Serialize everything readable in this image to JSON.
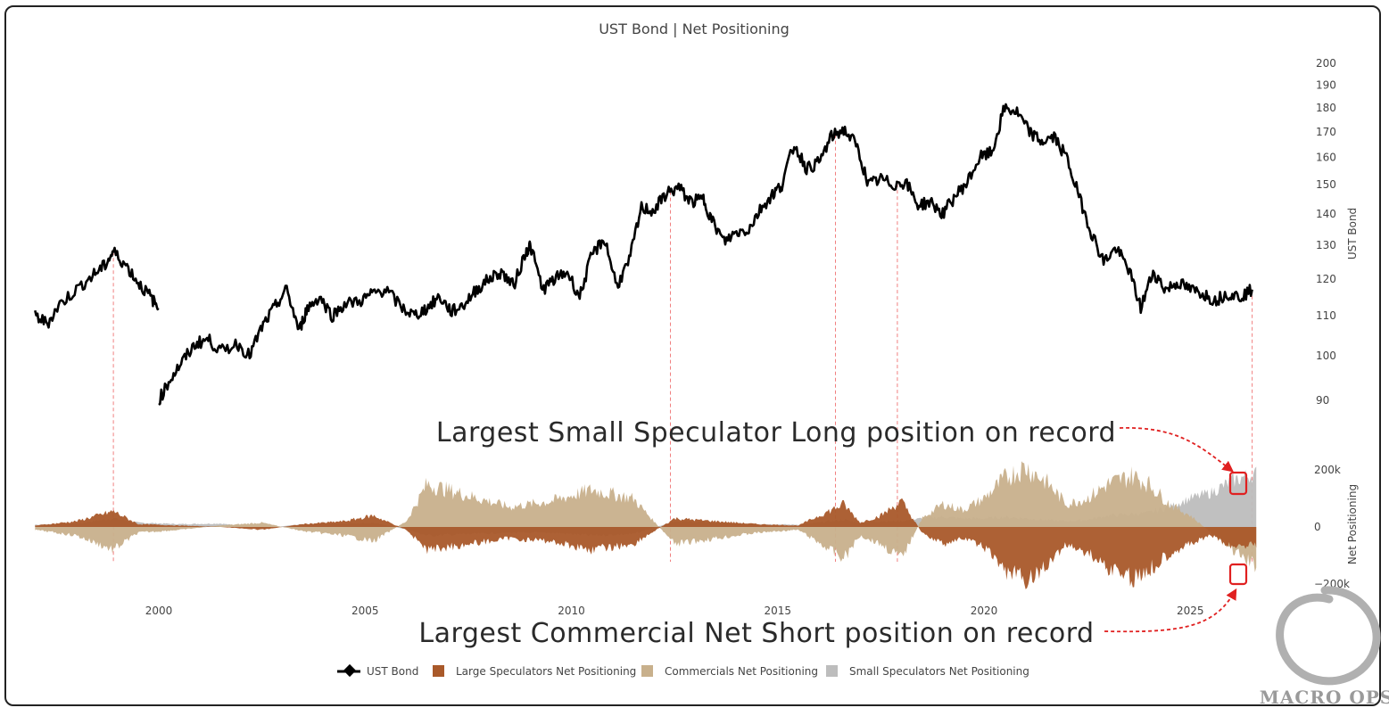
{
  "chart_data": {
    "type": "line",
    "title": "UST Bond | Net Positioning",
    "x_ticks": [
      "2000",
      "2005",
      "2010",
      "2015",
      "2020",
      "2025"
    ],
    "x_range": [
      1997.0,
      2026.6
    ],
    "upper_axis": {
      "label": "UST Bond",
      "scale": "log",
      "range": [
        85,
        200
      ],
      "ticks": [
        90,
        100,
        110,
        120,
        130,
        140,
        150,
        160,
        170,
        180,
        190,
        200
      ]
    },
    "lower_axis": {
      "label": "Net Positioning",
      "range": [
        -210000,
        230000
      ],
      "ticks": [
        200000,
        0,
        -200000
      ],
      "tick_labels": [
        "200k",
        "0",
        "−200k"
      ]
    },
    "series": [
      {
        "name": "UST Bond",
        "color": "#000000",
        "x": [
          1997.0,
          1997.3,
          1997.6,
          1998.0,
          1998.4,
          1998.7,
          1998.9,
          1999.2,
          1999.5,
          1999.8,
          1999.99,
          2000.0,
          2000.3,
          2000.6,
          2000.9,
          2001.2,
          2001.5,
          2001.9,
          2002.2,
          2002.5,
          2002.8,
          2003.1,
          2003.4,
          2003.6,
          2003.9,
          2004.2,
          2004.5,
          2004.9,
          2005.2,
          2005.5,
          2005.9,
          2006.2,
          2006.5,
          2006.8,
          2007.1,
          2007.4,
          2007.7,
          2008.0,
          2008.3,
          2008.6,
          2008.9,
          2009.0,
          2009.3,
          2009.6,
          2009.9,
          2010.2,
          2010.5,
          2010.8,
          2011.1,
          2011.4,
          2011.7,
          2012.0,
          2012.3,
          2012.6,
          2012.9,
          2013.2,
          2013.4,
          2013.7,
          2014.0,
          2014.3,
          2014.6,
          2014.9,
          2015.1,
          2015.4,
          2015.7,
          2016.0,
          2016.3,
          2016.6,
          2016.9,
          2017.2,
          2017.5,
          2017.8,
          2018.1,
          2018.4,
          2018.7,
          2019.0,
          2019.3,
          2019.6,
          2019.9,
          2020.2,
          2020.5,
          2020.8,
          2021.1,
          2021.4,
          2021.7,
          2022.0,
          2022.3,
          2022.6,
          2022.9,
          2023.2,
          2023.5,
          2023.8,
          2024.1,
          2024.4,
          2024.7,
          2025.0,
          2025.3,
          2025.6,
          2025.9,
          2026.2,
          2026.5
        ],
        "values": [
          110,
          108,
          113,
          117,
          121,
          124,
          128,
          124,
          119,
          115,
          112,
          90,
          95,
          99,
          103,
          104,
          101,
          103,
          100,
          107,
          112,
          117,
          106,
          112,
          115,
          110,
          113,
          114,
          116,
          117,
          112,
          110,
          112,
          115,
          111,
          113,
          117,
          120,
          122,
          118,
          128,
          130,
          117,
          120,
          122,
          115,
          127,
          132,
          118,
          125,
          142,
          141,
          147,
          149,
          144,
          145,
          138,
          131,
          134,
          135,
          142,
          147,
          150,
          165,
          156,
          158,
          168,
          171,
          165,
          150,
          152,
          150,
          151,
          143,
          144,
          140,
          146,
          151,
          160,
          162,
          180,
          178,
          170,
          166,
          168,
          160,
          146,
          134,
          125,
          129,
          123,
          112,
          122,
          117,
          119,
          117,
          116,
          114,
          116,
          115,
          117
        ]
      },
      {
        "name": "Large Speculators Net Positioning",
        "color": "#a9592a",
        "x": [
          1997.0,
          1998.0,
          1998.9,
          1999.5,
          2000.5,
          2001.5,
          2002.5,
          2003.5,
          2004.5,
          2005.2,
          2006.0,
          2006.5,
          2007.5,
          2008.5,
          2009.5,
          2010.5,
          2011.5,
          2012.5,
          2013.5,
          2014.5,
          2015.5,
          2016.6,
          2017.0,
          2017.5,
          2018.0,
          2018.5,
          2019.0,
          2019.5,
          2020.0,
          2020.5,
          2021.0,
          2021.5,
          2022.0,
          2022.5,
          2023.0,
          2023.6,
          2024.0,
          2024.5,
          2025.0,
          2025.5,
          2026.0,
          2026.5
        ],
        "values": [
          5000,
          20000,
          55000,
          10000,
          5000,
          0,
          -10000,
          10000,
          20000,
          40000,
          -10000,
          -80000,
          -60000,
          -40000,
          -50000,
          -80000,
          -60000,
          30000,
          20000,
          10000,
          5000,
          80000,
          15000,
          40000,
          90000,
          -20000,
          -60000,
          -40000,
          -70000,
          -150000,
          -190000,
          -140000,
          -60000,
          -90000,
          -140000,
          -180000,
          -150000,
          -90000,
          -60000,
          -30000,
          -70000,
          -60000
        ]
      },
      {
        "name": "Commercials Net Positioning",
        "color": "#c8b08c",
        "x": [
          1997.0,
          1998.0,
          1998.9,
          1999.5,
          2000.5,
          2001.5,
          2002.5,
          2003.5,
          2004.5,
          2005.2,
          2006.0,
          2006.5,
          2007.5,
          2008.5,
          2009.5,
          2010.5,
          2011.5,
          2012.5,
          2013.5,
          2014.5,
          2015.5,
          2016.6,
          2017.0,
          2017.5,
          2018.0,
          2018.5,
          2019.0,
          2019.5,
          2020.0,
          2020.5,
          2021.0,
          2021.5,
          2022.0,
          2022.5,
          2023.0,
          2023.6,
          2024.0,
          2024.5,
          2025.0,
          2025.5,
          2026.0,
          2026.5
        ],
        "values": [
          -10000,
          -30000,
          -80000,
          -20000,
          -10000,
          5000,
          15000,
          -15000,
          -30000,
          -50000,
          20000,
          150000,
          110000,
          70000,
          90000,
          130000,
          100000,
          -60000,
          -40000,
          -20000,
          -10000,
          -110000,
          -30000,
          -60000,
          -110000,
          30000,
          80000,
          60000,
          100000,
          170000,
          210000,
          160000,
          80000,
          100000,
          150000,
          180000,
          150000,
          80000,
          40000,
          -20000,
          -80000,
          -130000
        ]
      },
      {
        "name": "Small Speculators Net Positioning",
        "color": "#bdbdbd",
        "x": [
          1997.0,
          1998.0,
          1998.9,
          1999.5,
          2000.5,
          2001.5,
          2002.5,
          2003.5,
          2004.5,
          2005.2,
          2006.0,
          2006.5,
          2007.5,
          2008.5,
          2009.5,
          2010.5,
          2011.5,
          2012.5,
          2013.5,
          2014.5,
          2015.5,
          2016.6,
          2017.0,
          2017.5,
          2018.0,
          2018.5,
          2019.0,
          2019.5,
          2020.0,
          2020.5,
          2021.0,
          2021.5,
          2022.0,
          2022.5,
          2023.0,
          2023.6,
          2024.0,
          2024.5,
          2025.0,
          2025.5,
          2026.0,
          2026.5
        ],
        "values": [
          8000,
          12000,
          30000,
          15000,
          10000,
          12000,
          -5000,
          10000,
          12000,
          15000,
          -8000,
          -30000,
          -25000,
          -20000,
          -20000,
          -30000,
          -25000,
          20000,
          15000,
          10000,
          8000,
          25000,
          15000,
          20000,
          20000,
          30000,
          35000,
          30000,
          30000,
          35000,
          30000,
          25000,
          20000,
          25000,
          40000,
          45000,
          50000,
          70000,
          100000,
          120000,
          160000,
          185000
        ]
      }
    ],
    "event_markers_x": [
      1998.9,
      2012.4,
      2016.4,
      2017.9,
      2026.5
    ],
    "annotations": [
      "Largest Small Speculator Long position on record",
      "Largest Commercial Net Short position on record"
    ],
    "legend_placement": "bottom-center",
    "grid": false
  },
  "brand": {
    "text": "MACRO OPS"
  }
}
